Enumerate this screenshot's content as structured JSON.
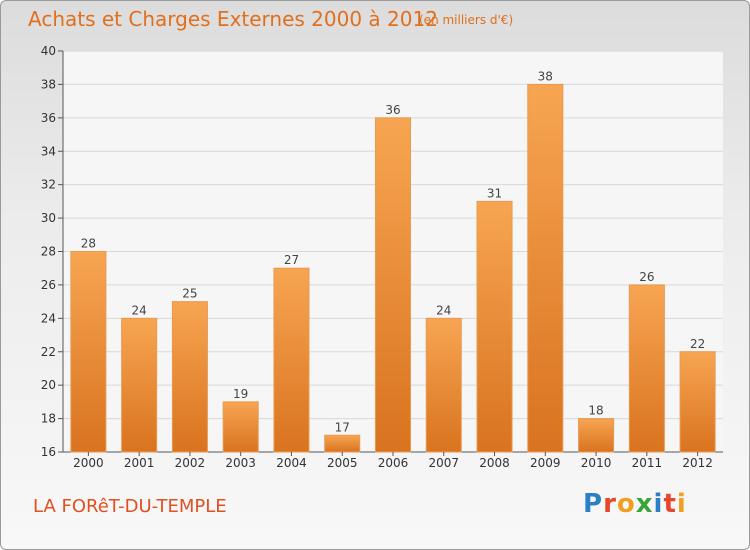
{
  "header": {
    "title": "Achats et Charges Externes 2000 à 2012",
    "subtitle": "(en milliers d'€)"
  },
  "footer": {
    "commune": "LA FORêT-DU-TEMPLE",
    "logo": "Proxiti"
  },
  "colors": {
    "bar_light": "#f7a552",
    "bar_dark": "#d9731f",
    "title": "#e0701e",
    "commune": "#e05020",
    "grid": "#d8d8d8"
  },
  "chart_data": {
    "type": "bar",
    "title": "Achats et Charges Externes 2000 à 2012",
    "subtitle": "(en milliers d'€)",
    "categories": [
      "2000",
      "2001",
      "2002",
      "2003",
      "2004",
      "2005",
      "2006",
      "2007",
      "2008",
      "2009",
      "2010",
      "2011",
      "2012"
    ],
    "values": [
      28,
      24,
      25,
      19,
      27,
      17,
      36,
      24,
      31,
      38,
      18,
      26,
      22
    ],
    "ylim": [
      16,
      40
    ],
    "yticks": [
      16,
      18,
      20,
      22,
      24,
      26,
      28,
      30,
      32,
      34,
      36,
      38,
      40
    ],
    "grid": true,
    "xlabel": "",
    "ylabel": ""
  }
}
